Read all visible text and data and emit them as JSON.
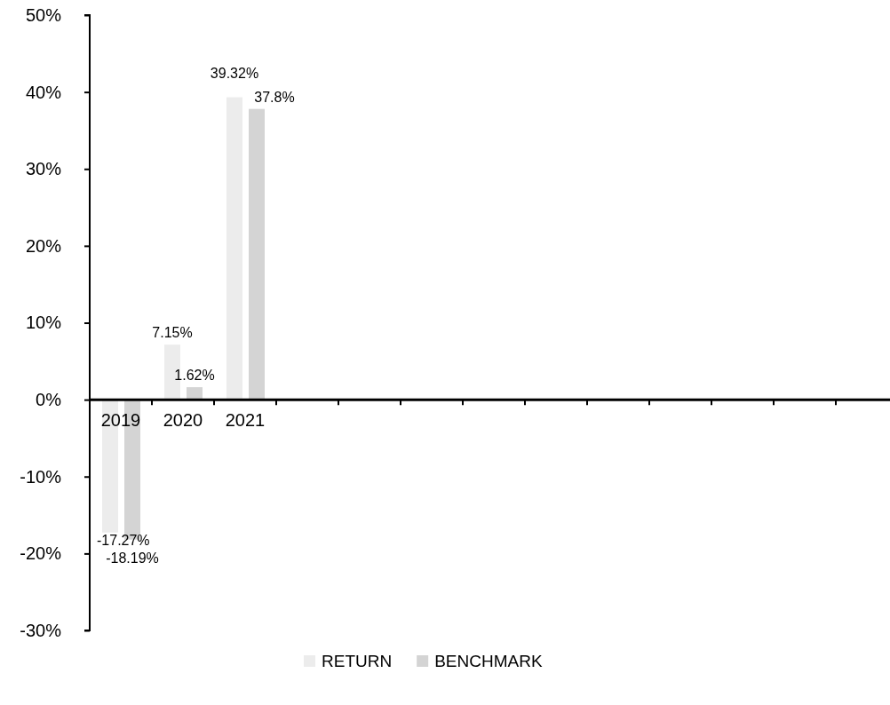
{
  "chart_data": {
    "type": "bar",
    "categories": [
      "2019",
      "2020",
      "2021",
      null,
      null,
      null,
      null,
      null,
      null,
      null,
      null,
      null,
      null
    ],
    "series": [
      {
        "name": "RETURN",
        "color": "#ececec",
        "values": [
          -17.27,
          7.15,
          39.32,
          null,
          null,
          null,
          null,
          null,
          null,
          null,
          null,
          null,
          null
        ],
        "value_labels": [
          "-17.27%",
          "7.15%",
          "39.32%",
          null,
          null,
          null,
          null,
          null,
          null,
          null,
          null,
          null,
          null
        ]
      },
      {
        "name": "BENCHMARK",
        "color": "#d4d4d4",
        "values": [
          -18.19,
          1.62,
          37.8,
          null,
          null,
          null,
          null,
          null,
          null,
          null,
          null,
          null,
          null
        ],
        "value_labels": [
          "-18.19%",
          "1.62%",
          "37.8%",
          null,
          null,
          null,
          null,
          null,
          null,
          null,
          null,
          null,
          null
        ]
      }
    ],
    "ylim": [
      -30,
      50
    ],
    "yticks": [
      {
        "value": -30,
        "label": "-30%"
      },
      {
        "value": -20,
        "label": "-20%"
      },
      {
        "value": -10,
        "label": "-10%"
      },
      {
        "value": 0,
        "label": "0%"
      },
      {
        "value": 10,
        "label": "10%"
      },
      {
        "value": 20,
        "label": "20%"
      },
      {
        "value": 30,
        "label": "30%"
      },
      {
        "value": 40,
        "label": "40%"
      },
      {
        "value": 50,
        "label": "50%"
      }
    ],
    "grid": false,
    "legend": "bottom"
  }
}
